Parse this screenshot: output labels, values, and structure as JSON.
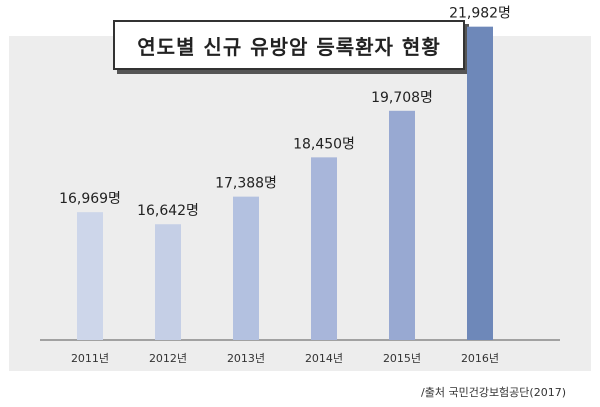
{
  "chart_data": {
    "type": "bar",
    "title": "연도별 신규 유방암 등록환자 현황",
    "categories": [
      "2011년",
      "2012년",
      "2013년",
      "2014년",
      "2015년",
      "2016년"
    ],
    "values": [
      16969,
      16642,
      17388,
      18450,
      19708,
      21982
    ],
    "value_labels": [
      "16,969명",
      "16,642명",
      "17,388명",
      "18,450명",
      "19,708명",
      "21,982명"
    ],
    "colors": [
      "#cdd6ea",
      "#c5cfe6",
      "#b3c1e0",
      "#a8b6da",
      "#98a9d2",
      "#6e88b9"
    ],
    "xlabel": "",
    "ylabel": "",
    "grid": false
  },
  "source": "/출처 국민건강보험공단(2017)"
}
